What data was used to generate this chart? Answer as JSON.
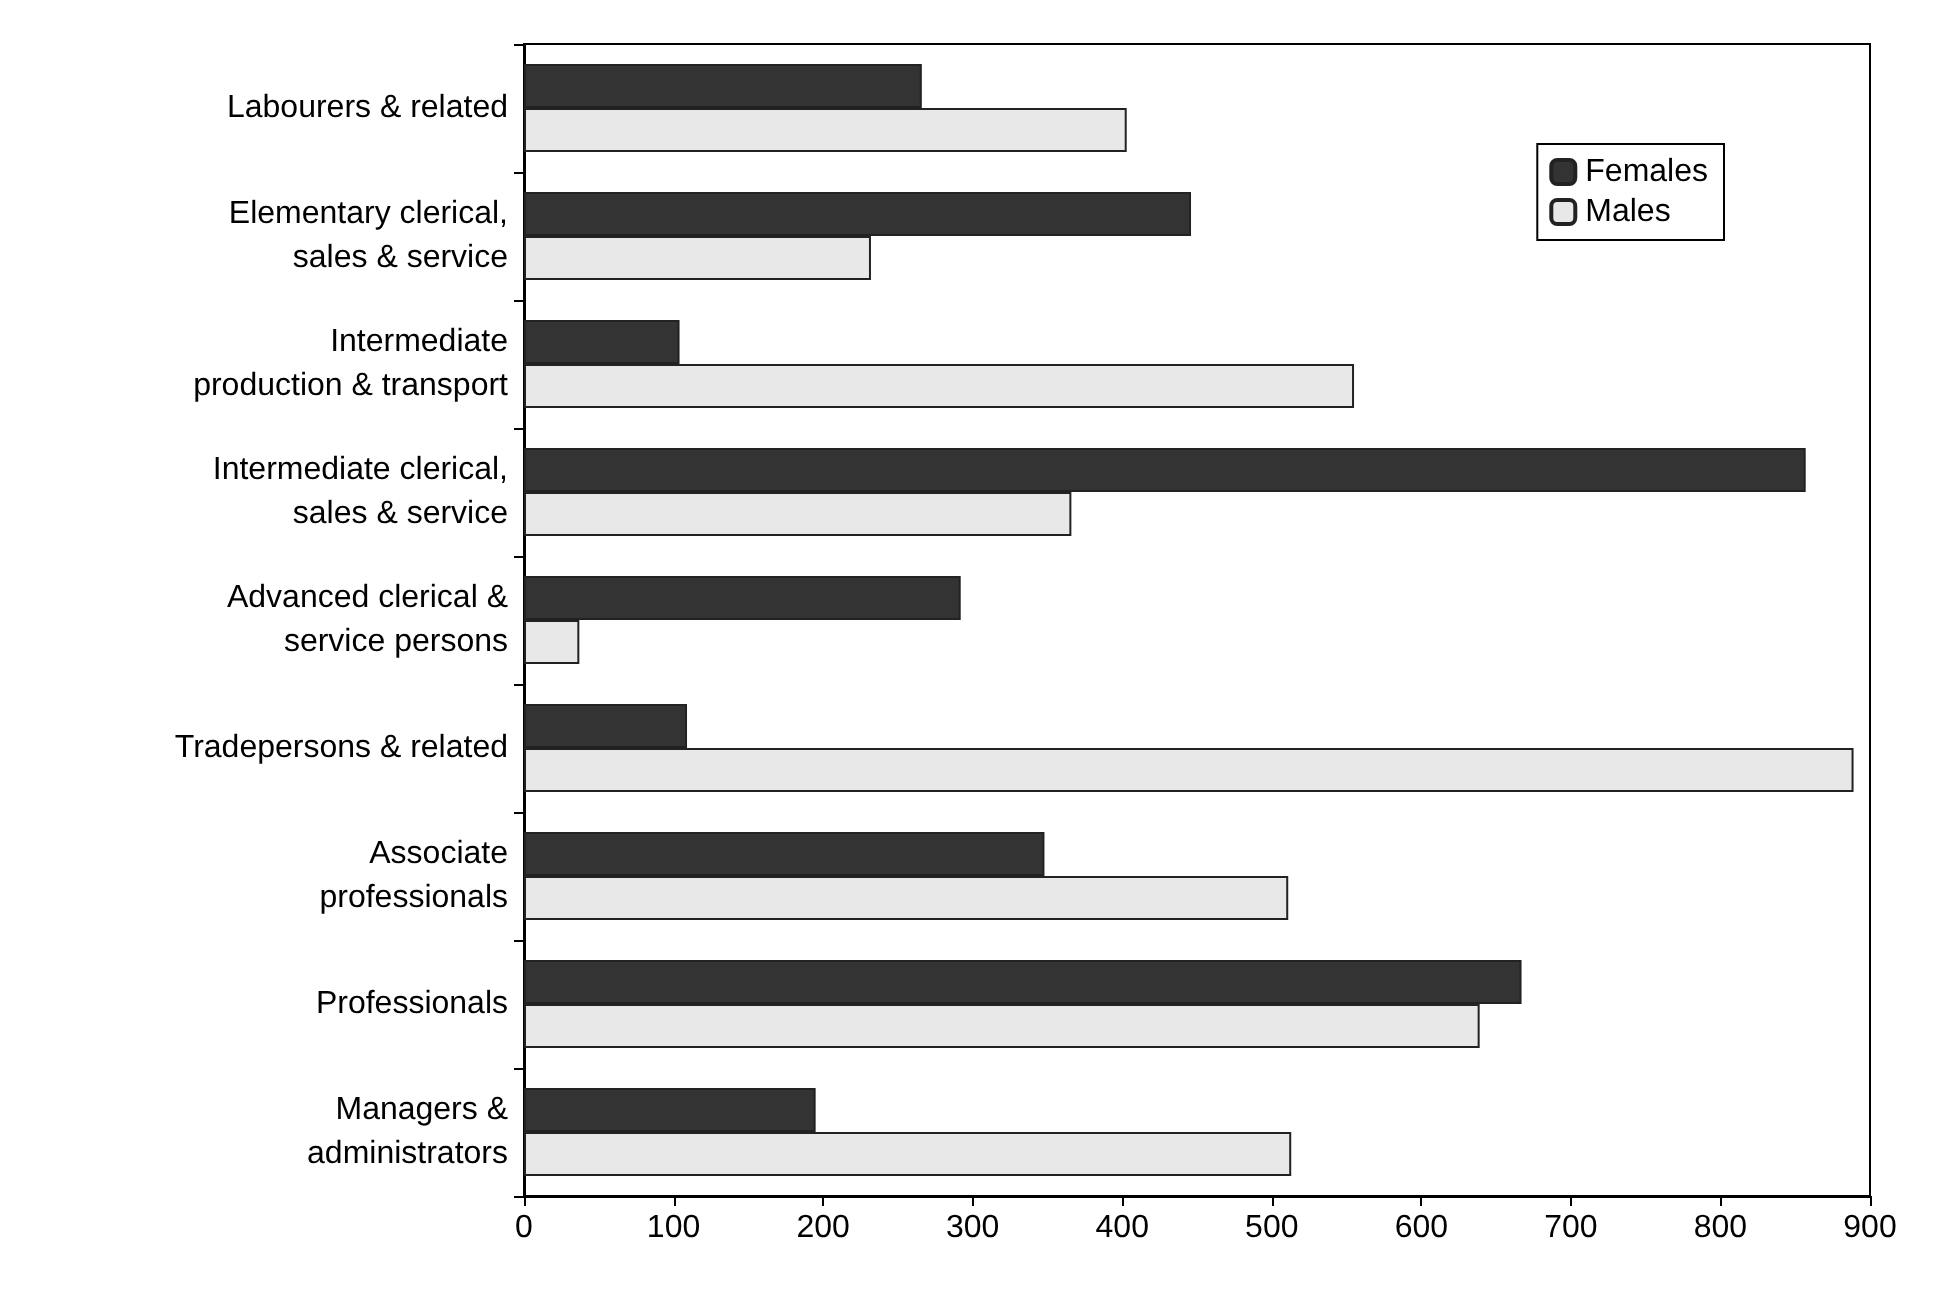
{
  "chart_data": {
    "type": "bar",
    "orientation": "horizontal",
    "categories": [
      "Labourers & related",
      "Elementary clerical, sales & service",
      "Intermediate production & transport",
      "Intermediate clerical, sales & service",
      "Advanced clerical & service persons",
      "Tradepersons & related",
      "Associate professionals",
      "Professionals",
      "Managers & administrators"
    ],
    "series": [
      {
        "name": "Females",
        "color": "#333333",
        "values": [
          266,
          446,
          104,
          857,
          292,
          109,
          348,
          667,
          195
        ]
      },
      {
        "name": "Males",
        "color": "#e8e8e8",
        "values": [
          403,
          232,
          555,
          366,
          37,
          889,
          511,
          639,
          513
        ]
      }
    ],
    "xlim": [
      0,
      900
    ],
    "xticks": [
      0,
      100,
      200,
      300,
      400,
      500,
      600,
      700,
      800,
      900
    ],
    "grid": false,
    "legend": "top right"
  }
}
